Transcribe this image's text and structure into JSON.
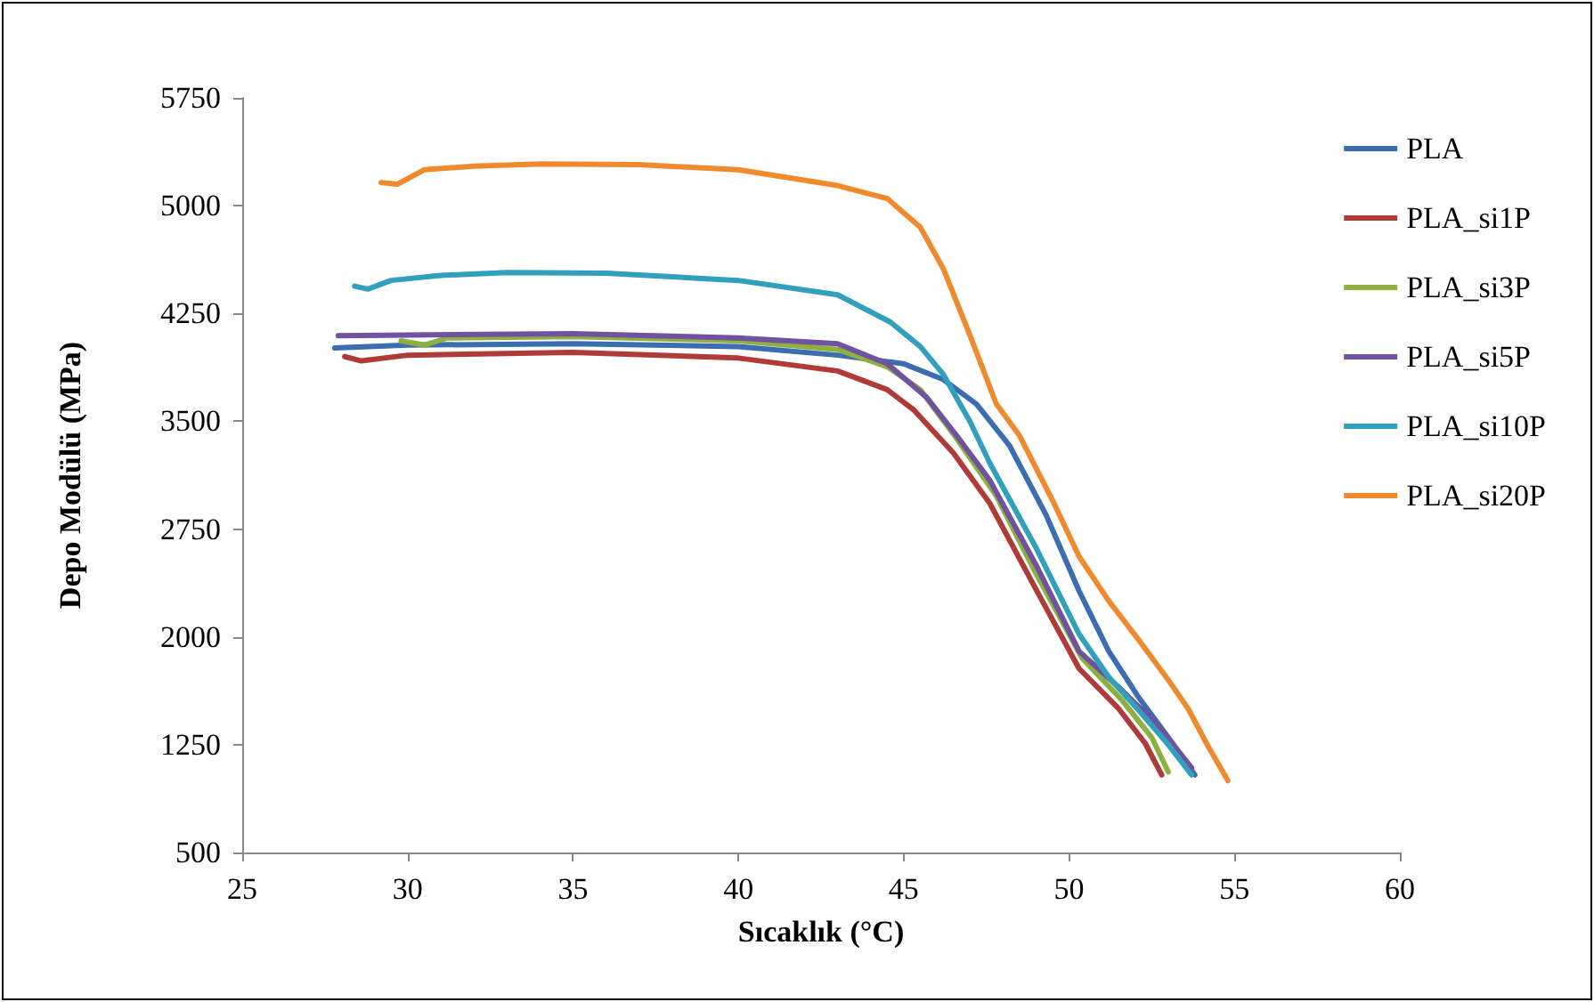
{
  "chart_data": {
    "type": "line",
    "xlabel": "Sıcaklık (°C)",
    "ylabel": "Depo Modülü (MPa)",
    "xlim": [
      25,
      60
    ],
    "xticks": [
      25,
      30,
      35,
      40,
      45,
      50,
      55,
      60
    ],
    "ylim": [
      500,
      5750
    ],
    "yticks": [
      500,
      1250,
      2000,
      2750,
      3500,
      4250,
      5000,
      5750
    ],
    "grid": false,
    "legend": "right",
    "marker": "none",
    "line_style": "solid",
    "series": [
      {
        "name": "PLA",
        "color": "#3c6db0",
        "x": [
          27.8,
          30,
          35,
          40,
          43,
          45,
          46.2,
          47.2,
          48.2,
          49.3,
          50.3,
          51.2,
          52.1,
          53,
          53.8
        ],
        "values": [
          4010,
          4030,
          4040,
          4020,
          3960,
          3900,
          3790,
          3620,
          3330,
          2850,
          2320,
          1900,
          1580,
          1300,
          1040
        ]
      },
      {
        "name": "PLA_si1P",
        "color": "#b03a37",
        "x": [
          28.1,
          28.6,
          30,
          35,
          40,
          43,
          44.5,
          45.3,
          46.5,
          47.6,
          49,
          50.3,
          51.5,
          52.3,
          52.8
        ],
        "values": [
          3950,
          3920,
          3960,
          3980,
          3940,
          3850,
          3720,
          3580,
          3280,
          2930,
          2330,
          1780,
          1500,
          1260,
          1040
        ]
      },
      {
        "name": "PLA_si3P",
        "color": "#8db040",
        "x": [
          29.8,
          30.5,
          31.2,
          35,
          40,
          43,
          44.5,
          45.5,
          46.6,
          47.8,
          49,
          50.4,
          51.6,
          52.5,
          53
        ],
        "values": [
          4060,
          4030,
          4080,
          4090,
          4060,
          4000,
          3880,
          3720,
          3380,
          2980,
          2440,
          1850,
          1560,
          1300,
          1060
        ]
      },
      {
        "name": "PLA_si5P",
        "color": "#7052a0",
        "x": [
          27.9,
          30,
          35,
          40,
          43,
          44.5,
          45.7,
          46.6,
          47.6,
          49,
          50.3,
          51.5,
          52.7,
          53.7
        ],
        "values": [
          4095,
          4100,
          4110,
          4080,
          4040,
          3900,
          3665,
          3400,
          3090,
          2500,
          1900,
          1650,
          1380,
          1090
        ]
      },
      {
        "name": "PLA_si10P",
        "color": "#31a0bc",
        "x": [
          28.4,
          28.8,
          29.5,
          31,
          33,
          36,
          40,
          43,
          44.6,
          45.5,
          46.2,
          47,
          47.6,
          49,
          50.3,
          51.2,
          52.1,
          53,
          53.7
        ],
        "values": [
          4440,
          4420,
          4480,
          4515,
          4535,
          4530,
          4480,
          4380,
          4190,
          4020,
          3825,
          3500,
          3210,
          2620,
          2020,
          1720,
          1490,
          1250,
          1040
        ]
      },
      {
        "name": "PLA_si20P",
        "color": "#ef8a2e",
        "x": [
          29.2,
          29.7,
          30.5,
          32,
          34,
          37,
          40,
          43,
          44.5,
          45.5,
          46.2,
          47,
          47.8,
          48.5,
          49.5,
          50.3,
          51.2,
          52.1,
          53,
          53.6,
          54.2,
          54.8
        ],
        "values": [
          5160,
          5150,
          5250,
          5275,
          5290,
          5285,
          5250,
          5140,
          5050,
          4850,
          4560,
          4100,
          3620,
          3400,
          2950,
          2560,
          2250,
          1980,
          1700,
          1500,
          1240,
          1000
        ]
      }
    ]
  }
}
